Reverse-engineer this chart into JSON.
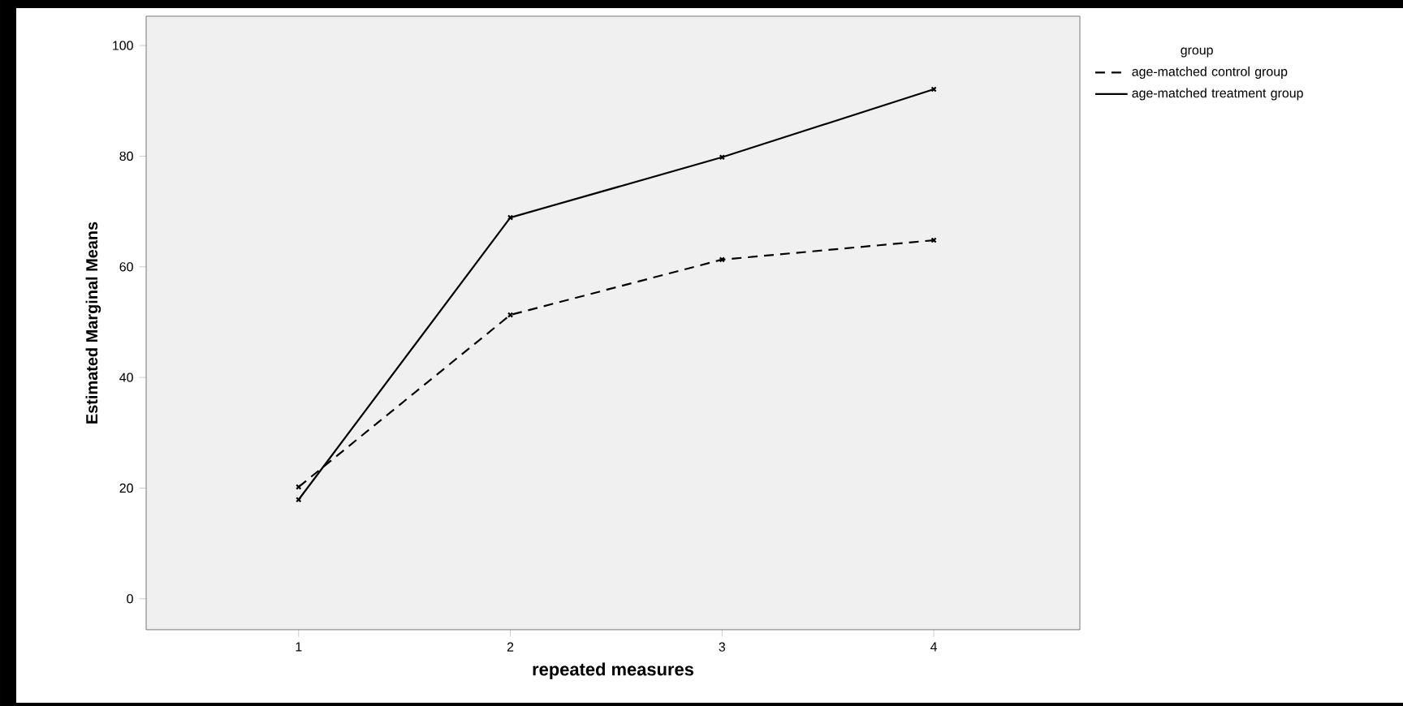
{
  "chart_data": {
    "type": "line",
    "xlabel": "repeated measures",
    "ylabel": "Estimated Marginal Means",
    "legend_title": "group",
    "categories": [
      "1",
      "2",
      "3",
      "4"
    ],
    "series": [
      {
        "name": "age-matched control group",
        "color": "#000000",
        "line_style": "dashed",
        "values": [
          20.2,
          51.3,
          61.3,
          64.8
        ]
      },
      {
        "name": "age-matched treatment group",
        "color": "#000000",
        "line_style": "solid",
        "values": [
          17.9,
          68.9,
          79.8,
          92.1
        ]
      }
    ],
    "ylim": [
      -5.6,
      105.3
    ],
    "yticks": [
      0,
      20,
      40,
      60,
      80,
      100
    ],
    "marker": "cross",
    "legend": "top right"
  }
}
